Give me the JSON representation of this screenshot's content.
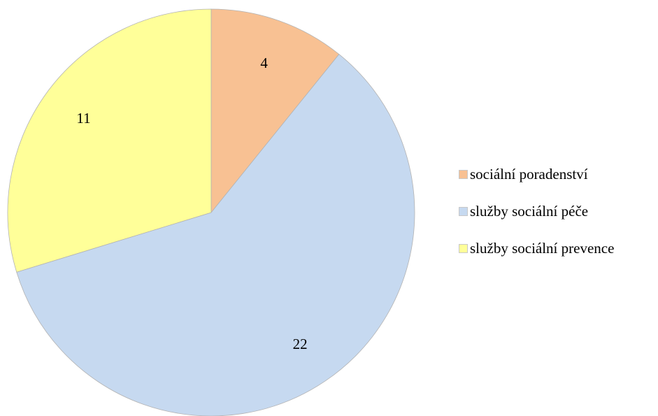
{
  "chart_data": {
    "type": "pie",
    "title": "",
    "slices": [
      {
        "label": "sociální poradenství",
        "value": 4,
        "color": "#f8c193"
      },
      {
        "label": "služby sociální péče",
        "value": 22,
        "color": "#c6d9f0"
      },
      {
        "label": "služby sociální prevence",
        "value": 11,
        "color": "#ffff99"
      }
    ],
    "start_angle": "12 o'clock",
    "direction": "clockwise",
    "data_labels": "values",
    "legend_position": "right"
  }
}
